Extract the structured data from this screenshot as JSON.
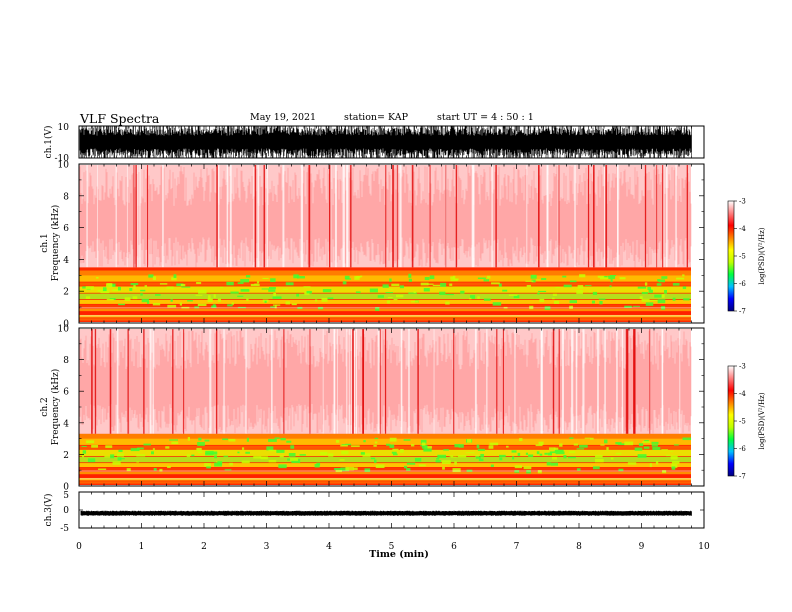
{
  "header": {
    "title": "VLF Spectra",
    "date": "May 19, 2021",
    "station": "station= KAP",
    "start": "start  UT =   4 : 50 : 1"
  },
  "chart_data": [
    {
      "type": "line",
      "name": "ch1-waveform",
      "ylabel": "ch.1(V)",
      "ylim": [
        -10,
        10
      ],
      "yticks": [
        "10",
        "-10"
      ],
      "xlim": [
        0,
        10
      ],
      "data_end_min": 9.8
    },
    {
      "type": "heatmap",
      "name": "ch1-spectrogram",
      "ylabel_lines": [
        "ch.1",
        "Frequency  (kHz)"
      ],
      "ylim": [
        0,
        10
      ],
      "yticks": [
        "0",
        "2",
        "4",
        "6",
        "8",
        "10"
      ],
      "xlim": [
        0,
        10
      ],
      "data_end_min": 9.8,
      "band_top_khz": 3.5
    },
    {
      "type": "heatmap",
      "name": "ch2-spectrogram",
      "ylabel_lines": [
        "ch.2",
        "Frequency  (kHz)"
      ],
      "ylim": [
        0,
        10
      ],
      "yticks": [
        "0",
        "2",
        "4",
        "6",
        "8",
        "10"
      ],
      "xlim": [
        0,
        10
      ],
      "data_end_min": 9.8,
      "band_top_khz": 3.3
    },
    {
      "type": "line",
      "name": "ch3-waveform",
      "ylabel": "ch.3(V)",
      "ylim": [
        -5,
        5
      ],
      "yticks": [
        "5",
        "0",
        "-5"
      ],
      "xlim": [
        0,
        10
      ],
      "data_end_min": 9.8,
      "xlabel": "Time  (min)",
      "xticks": [
        "0",
        "1",
        "2",
        "3",
        "4",
        "5",
        "6",
        "7",
        "8",
        "9",
        "10"
      ]
    }
  ],
  "colorbar": {
    "label": "log(PSD)(V²/Hz)",
    "ticks": [
      "-3",
      "-4",
      "-5",
      "-6",
      "-7"
    ],
    "range": [
      -7,
      -3
    ],
    "stops": [
      "#000080",
      "#0000ff",
      "#00c0ff",
      "#00ff40",
      "#c0ff00",
      "#ffff00",
      "#ff8000",
      "#ff0000",
      "#ff8080",
      "#ffffff"
    ]
  }
}
